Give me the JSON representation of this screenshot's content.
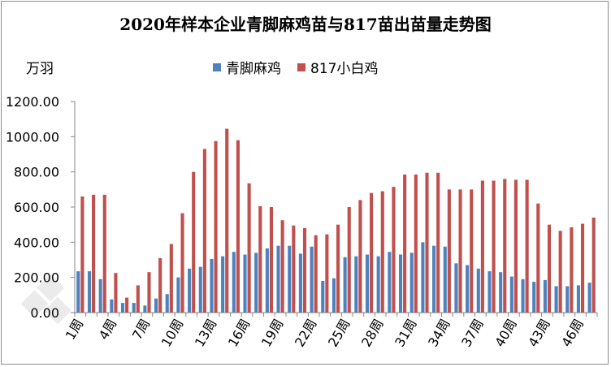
{
  "chart_data": {
    "type": "bar",
    "title": "2020年样本企业青脚麻鸡苗与817苗出苗量走势图",
    "ylabel": "万羽",
    "ylim": [
      0,
      1200
    ],
    "yticks": [
      "0.00",
      "200.00",
      "400.00",
      "600.00",
      "800.00",
      "1000.00",
      "1200.00"
    ],
    "grid": false,
    "legend_position": "top-center",
    "categories": [
      "1周",
      "2周",
      "3周",
      "4周",
      "5周",
      "6周",
      "7周",
      "8周",
      "9周",
      "10周",
      "11周",
      "12周",
      "13周",
      "14周",
      "15周",
      "16周",
      "17周",
      "18周",
      "19周",
      "20周",
      "21周",
      "22周",
      "23周",
      "24周",
      "25周",
      "26周",
      "27周",
      "28周",
      "29周",
      "30周",
      "31周",
      "32周",
      "33周",
      "34周",
      "35周",
      "36周",
      "37周",
      "38周",
      "39周",
      "40周",
      "41周",
      "42周",
      "43周",
      "44周",
      "45周",
      "46周",
      "47周"
    ],
    "xtick_labels": [
      "1周",
      "4周",
      "7周",
      "10周",
      "13周",
      "16周",
      "19周",
      "22周",
      "25周",
      "28周",
      "31周",
      "34周",
      "37周",
      "40周",
      "43周",
      "46周"
    ],
    "series": [
      {
        "name": "青脚麻鸡",
        "color": "#4f81bd",
        "values": [
          235,
          235,
          190,
          75,
          55,
          55,
          40,
          80,
          105,
          200,
          250,
          260,
          305,
          320,
          345,
          330,
          340,
          365,
          380,
          380,
          335,
          375,
          180,
          195,
          315,
          320,
          330,
          320,
          345,
          330,
          340,
          400,
          380,
          375,
          280,
          270,
          250,
          235,
          230,
          205,
          190,
          175,
          185,
          150,
          150,
          155,
          170
        ]
      },
      {
        "name": "817小白鸡",
        "color": "#c0504d",
        "values": [
          660,
          670,
          670,
          225,
          85,
          155,
          230,
          310,
          390,
          565,
          800,
          930,
          975,
          1045,
          980,
          735,
          605,
          600,
          525,
          495,
          480,
          440,
          445,
          500,
          600,
          640,
          680,
          690,
          715,
          785,
          785,
          795,
          795,
          700,
          700,
          700,
          750,
          750,
          760,
          755,
          755,
          620,
          500,
          465,
          485,
          505,
          540
        ]
      }
    ]
  }
}
